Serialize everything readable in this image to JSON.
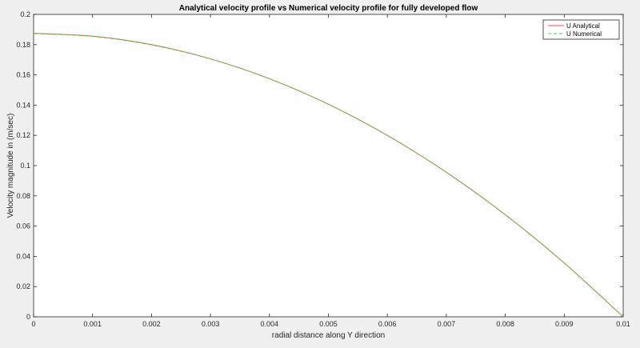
{
  "chart_data": {
    "type": "line",
    "title": "Analytical velocity profile vs Numerical velocity profile for fully developed flow",
    "xlabel": "radial distance along Y direction",
    "ylabel": "Velocity magnitude in (m/sec)",
    "xlim": [
      0,
      0.01
    ],
    "ylim": [
      0,
      0.2
    ],
    "xticks": [
      0,
      0.001,
      0.002,
      0.003,
      0.004,
      0.005,
      0.006,
      0.007,
      0.008,
      0.009,
      0.01
    ],
    "xtick_labels": [
      "0",
      "0.001",
      "0.002",
      "0.003",
      "0.004",
      "0.005",
      "0.006",
      "0.007",
      "0.008",
      "0.009",
      "0.01"
    ],
    "yticks": [
      0,
      0.02,
      0.04,
      0.06,
      0.08,
      0.1,
      0.12,
      0.14,
      0.16,
      0.18,
      0.2
    ],
    "ytick_labels": [
      "0",
      "0.02",
      "0.04",
      "0.06",
      "0.08",
      "0.1",
      "0.12",
      "0.14",
      "0.16",
      "0.18",
      "0.2"
    ],
    "grid": false,
    "legend_position": "top-right",
    "series": [
      {
        "name": "U Analytical",
        "color": "#ff4a4a",
        "style": "solid",
        "x": [
          0,
          0.001,
          0.002,
          0.003,
          0.004,
          0.005,
          0.006,
          0.007,
          0.008,
          0.009,
          0.01
        ],
        "y": [
          0.1875,
          0.1856,
          0.18,
          0.1706,
          0.1575,
          0.1406,
          0.12,
          0.0956,
          0.0675,
          0.0356,
          0
        ]
      },
      {
        "name": "U Numerical",
        "color": "#3fd43f",
        "style": "dashed",
        "x": [
          0,
          0.001,
          0.002,
          0.003,
          0.004,
          0.005,
          0.006,
          0.007,
          0.008,
          0.009,
          0.01
        ],
        "y": [
          0.1873,
          0.1854,
          0.1798,
          0.1705,
          0.1574,
          0.1406,
          0.12,
          0.0956,
          0.0675,
          0.0356,
          0
        ]
      }
    ]
  }
}
